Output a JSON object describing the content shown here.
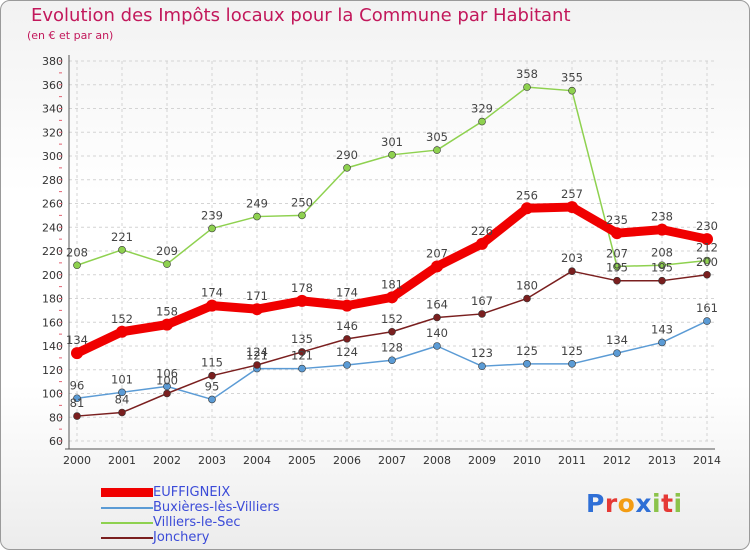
{
  "title": "Evolution des Impôts locaux pour la Commune par Habitant",
  "subtitle": "(en € et par an)",
  "logo": {
    "text": "Proxiti",
    "colors": [
      "#2f6fd6",
      "#e53935",
      "#f39c12",
      "#2f6fd6",
      "#8bc34a",
      "#e53935",
      "#8bc34a"
    ]
  },
  "chart_data": {
    "type": "line",
    "x": [
      2000,
      2001,
      2002,
      2003,
      2004,
      2005,
      2006,
      2007,
      2008,
      2009,
      2010,
      2011,
      2012,
      2013,
      2014
    ],
    "ylim": [
      60,
      380
    ],
    "yticks": [
      60,
      80,
      100,
      120,
      140,
      160,
      180,
      200,
      220,
      240,
      260,
      280,
      300,
      320,
      340,
      360,
      380
    ],
    "grid": true,
    "legend_position": "bottom-left",
    "series": [
      {
        "name": "EUFFIGNEIX",
        "color": "#f00000",
        "values": [
          134,
          152,
          158,
          174,
          171,
          178,
          174,
          181,
          207,
          226,
          256,
          257,
          235,
          238,
          230
        ]
      },
      {
        "name": "Buxières-lès-Villiers",
        "color": "#5b9bd5",
        "values": [
          96,
          101,
          106,
          95,
          121,
          121,
          124,
          128,
          140,
          123,
          125,
          125,
          134,
          143,
          161
        ]
      },
      {
        "name": "Villiers-le-Sec",
        "color": "#8ed14f",
        "values": [
          208,
          221,
          209,
          239,
          249,
          250,
          290,
          301,
          305,
          329,
          358,
          355,
          207,
          208,
          212
        ]
      },
      {
        "name": "Jonchery",
        "color": "#7a1f1f",
        "values": [
          81,
          84,
          100,
          115,
          124,
          135,
          146,
          152,
          164,
          167,
          180,
          203,
          195,
          195,
          200
        ]
      }
    ]
  }
}
